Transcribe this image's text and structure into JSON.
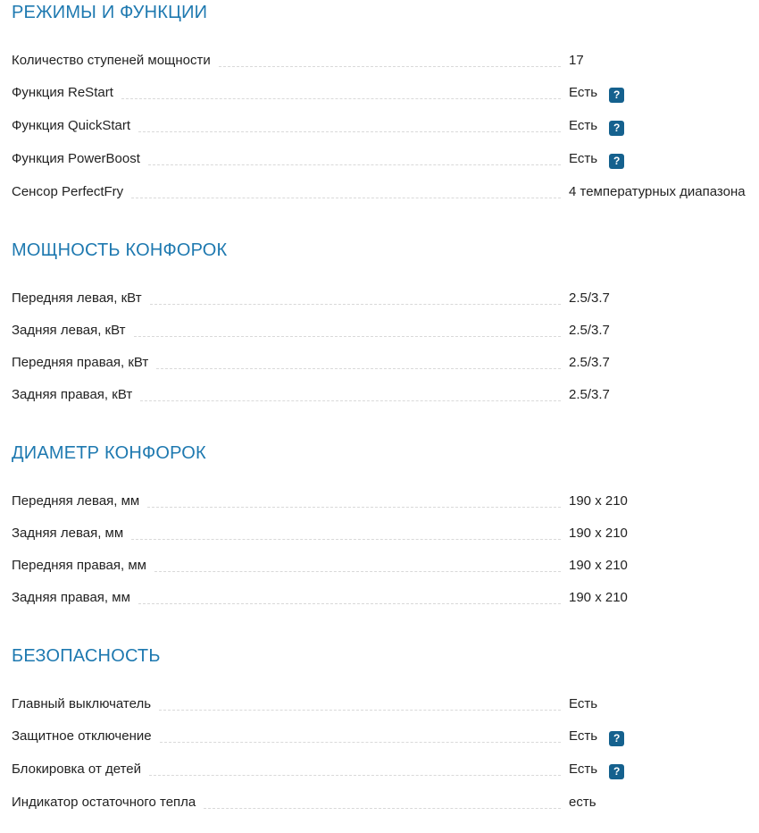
{
  "help_glyph": "?",
  "colors": {
    "section_title": "#1e79b0",
    "help_badge_bg": "#15618e",
    "help_badge_text": "#ffffff",
    "row_text": "#222222",
    "leader_dashes": "#d9d9d9",
    "background": "#ffffff"
  },
  "sections": [
    {
      "title": "РЕЖИМЫ И ФУНКЦИИ",
      "rows": [
        {
          "label": "Количество ступеней мощности",
          "value": "17",
          "help": false
        },
        {
          "label": "Функция ReStart",
          "value": "Есть",
          "help": true
        },
        {
          "label": "Функция QuickStart",
          "value": "Есть",
          "help": true
        },
        {
          "label": "Функция PowerBoost",
          "value": "Есть",
          "help": true
        },
        {
          "label": "Сенсор PerfectFry",
          "value": "4 температурных диапазона",
          "help": false
        }
      ]
    },
    {
      "title": "МОЩНОСТЬ КОНФОРОК",
      "rows": [
        {
          "label": "Передняя левая, кВт",
          "value": "2.5/3.7",
          "help": false
        },
        {
          "label": "Задняя левая, кВт",
          "value": "2.5/3.7",
          "help": false
        },
        {
          "label": "Передняя правая, кВт",
          "value": "2.5/3.7",
          "help": false
        },
        {
          "label": "Задняя правая, кВт",
          "value": "2.5/3.7",
          "help": false
        }
      ]
    },
    {
      "title": "ДИАМЕТР КОНФОРОК",
      "rows": [
        {
          "label": "Передняя левая, мм",
          "value": "190 x 210",
          "help": false
        },
        {
          "label": "Задняя левая, мм",
          "value": "190 x 210",
          "help": false
        },
        {
          "label": "Передняя правая, мм",
          "value": "190 x 210",
          "help": false
        },
        {
          "label": "Задняя правая, мм",
          "value": "190 x 210",
          "help": false
        }
      ]
    },
    {
      "title": "БЕЗОПАСНОСТЬ",
      "rows": [
        {
          "label": "Главный выключатель",
          "value": "Есть",
          "help": false
        },
        {
          "label": "Защитное отключение",
          "value": "Есть",
          "help": true
        },
        {
          "label": "Блокировка от детей",
          "value": "Есть",
          "help": true
        },
        {
          "label": "Индикатор остаточного тепла",
          "value": "есть",
          "help": false
        }
      ]
    }
  ]
}
